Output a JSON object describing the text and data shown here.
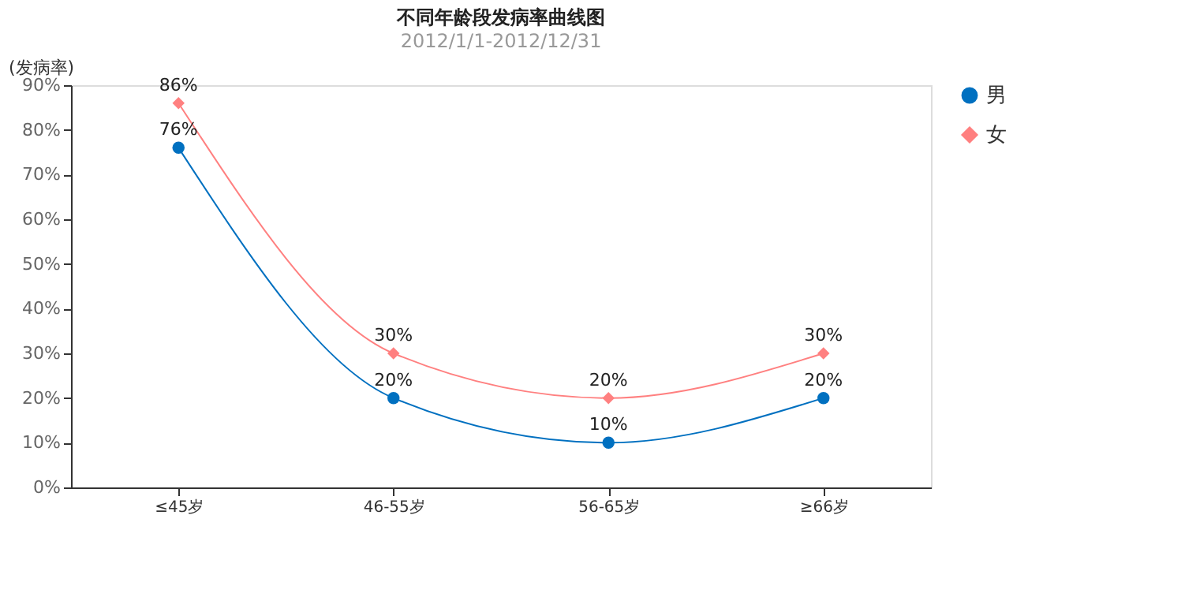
{
  "chart_data": {
    "type": "line",
    "title": "不同年龄段发病率曲线图",
    "subtitle": "2012/1/1-2012/12/31",
    "ylabel": "(发病率)",
    "categories": [
      "≤45岁",
      "46-55岁",
      "56-65岁",
      "≥66岁"
    ],
    "series": [
      {
        "name": "男",
        "color": "#0070c0",
        "marker": "circle",
        "values": [
          76,
          20,
          10,
          20
        ],
        "value_labels": [
          "76%",
          "20%",
          "10%",
          "20%"
        ]
      },
      {
        "name": "女",
        "color": "#ff8080",
        "marker": "diamond",
        "values": [
          86,
          30,
          20,
          30
        ],
        "value_labels": [
          "86%",
          "30%",
          "20%",
          "30%"
        ]
      }
    ],
    "ylim": [
      0,
      90
    ],
    "yticks": [
      {
        "value": 0,
        "label": "0%"
      },
      {
        "value": 10,
        "label": "10%"
      },
      {
        "value": 20,
        "label": "20%"
      },
      {
        "value": 30,
        "label": "30%"
      },
      {
        "value": 40,
        "label": "40%"
      },
      {
        "value": 50,
        "label": "50%"
      },
      {
        "value": 60,
        "label": "60%"
      },
      {
        "value": 70,
        "label": "70%"
      },
      {
        "value": 80,
        "label": "80%"
      },
      {
        "value": 90,
        "label": "90%"
      }
    ],
    "grid": false,
    "legend": "right",
    "line_style": "solid"
  }
}
